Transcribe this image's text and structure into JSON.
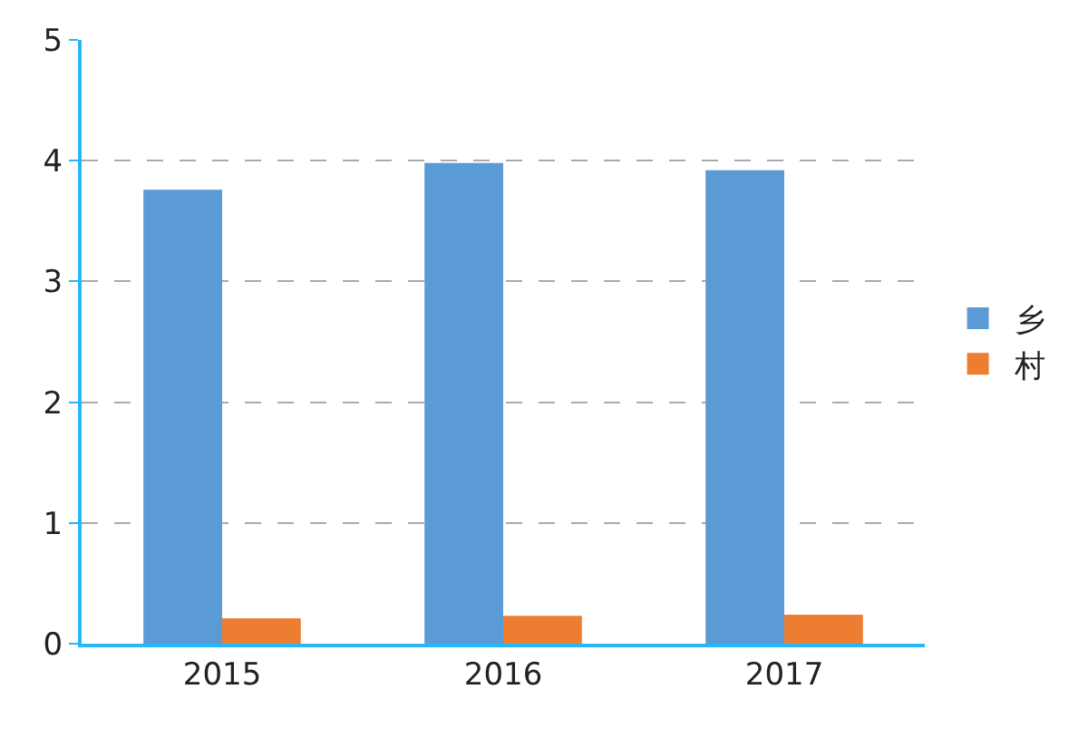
{
  "chart_data": {
    "type": "bar",
    "categories": [
      "2015",
      "2016",
      "2017"
    ],
    "series": [
      {
        "name": "乡",
        "color": "#5b9bd5",
        "values": [
          3.76,
          3.98,
          3.92
        ]
      },
      {
        "name": "村",
        "color": "#ed7d31",
        "values": [
          0.21,
          0.23,
          0.24
        ]
      }
    ],
    "ylim": [
      0,
      5
    ],
    "yticks": [
      0,
      1,
      2,
      3,
      4,
      5
    ],
    "grid": "y",
    "legend": "right"
  }
}
